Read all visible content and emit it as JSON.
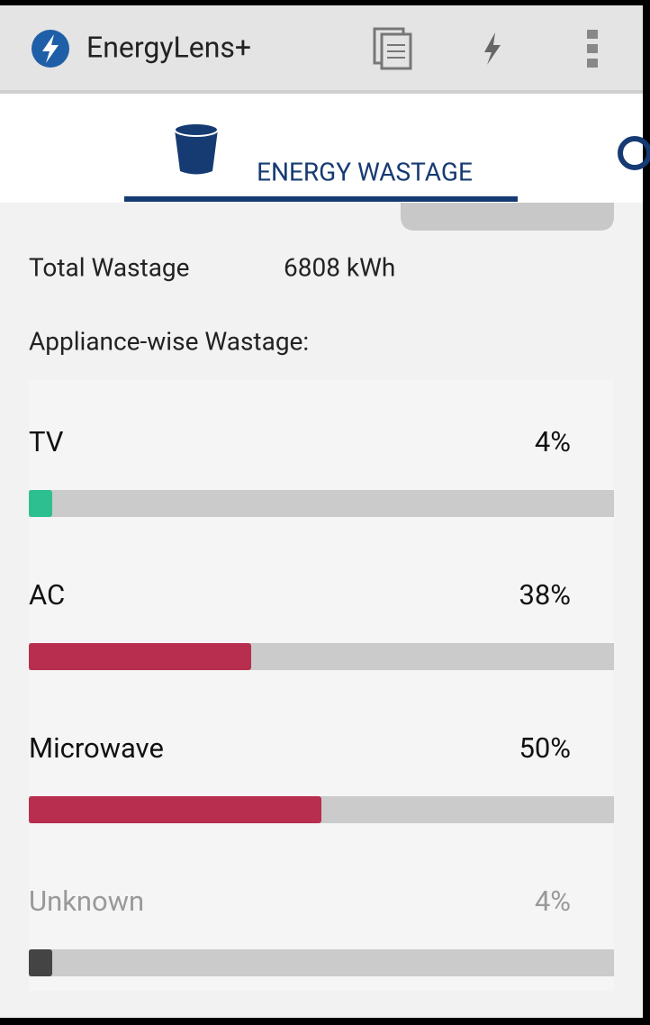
{
  "app_bar": {
    "title": "EnergyLens+"
  },
  "tab": {
    "label": "ENERGY WASTAGE"
  },
  "summary": {
    "label": "Total Wastage",
    "value": "6808 kWh"
  },
  "section": {
    "title": "Appliance-wise Wastage:"
  },
  "chart_data": {
    "type": "bar",
    "categories": [
      "TV",
      "AC",
      "Microwave",
      "Unknown"
    ],
    "values": [
      4,
      38,
      50,
      4
    ],
    "value_labels": [
      "4%",
      "38%",
      "50%",
      "4%"
    ],
    "colors": [
      "#2ebf91",
      "#b82e4f",
      "#b82e4f",
      "#444444"
    ],
    "xlim": [
      0,
      100
    ]
  }
}
